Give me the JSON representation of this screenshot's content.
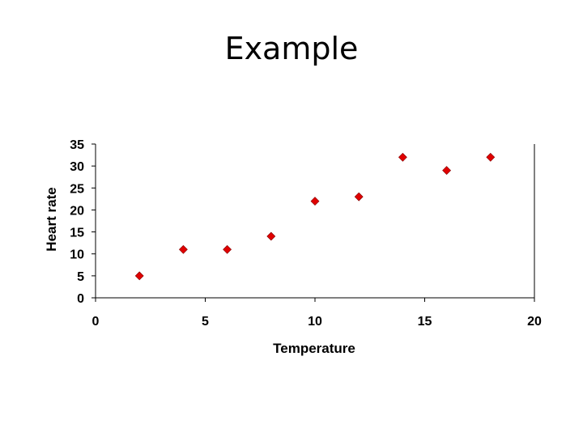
{
  "slide": {
    "title": "Example"
  },
  "chart_data": {
    "type": "scatter",
    "title": "",
    "xlabel": "Temperature",
    "ylabel": "Heart rate",
    "xlim": [
      0,
      20
    ],
    "ylim": [
      0,
      35
    ],
    "xticks": [
      0,
      5,
      10,
      15,
      20
    ],
    "yticks": [
      0,
      5,
      10,
      15,
      20,
      25,
      30,
      35
    ],
    "grid": false,
    "legend": "none",
    "marker": "diamond",
    "marker_color": "#e00000",
    "series": [
      {
        "x": [
          2,
          4,
          6,
          8,
          10,
          12,
          14,
          16,
          18
        ],
        "y": [
          5,
          11,
          11,
          14,
          22,
          23,
          32,
          29,
          32
        ]
      }
    ]
  }
}
